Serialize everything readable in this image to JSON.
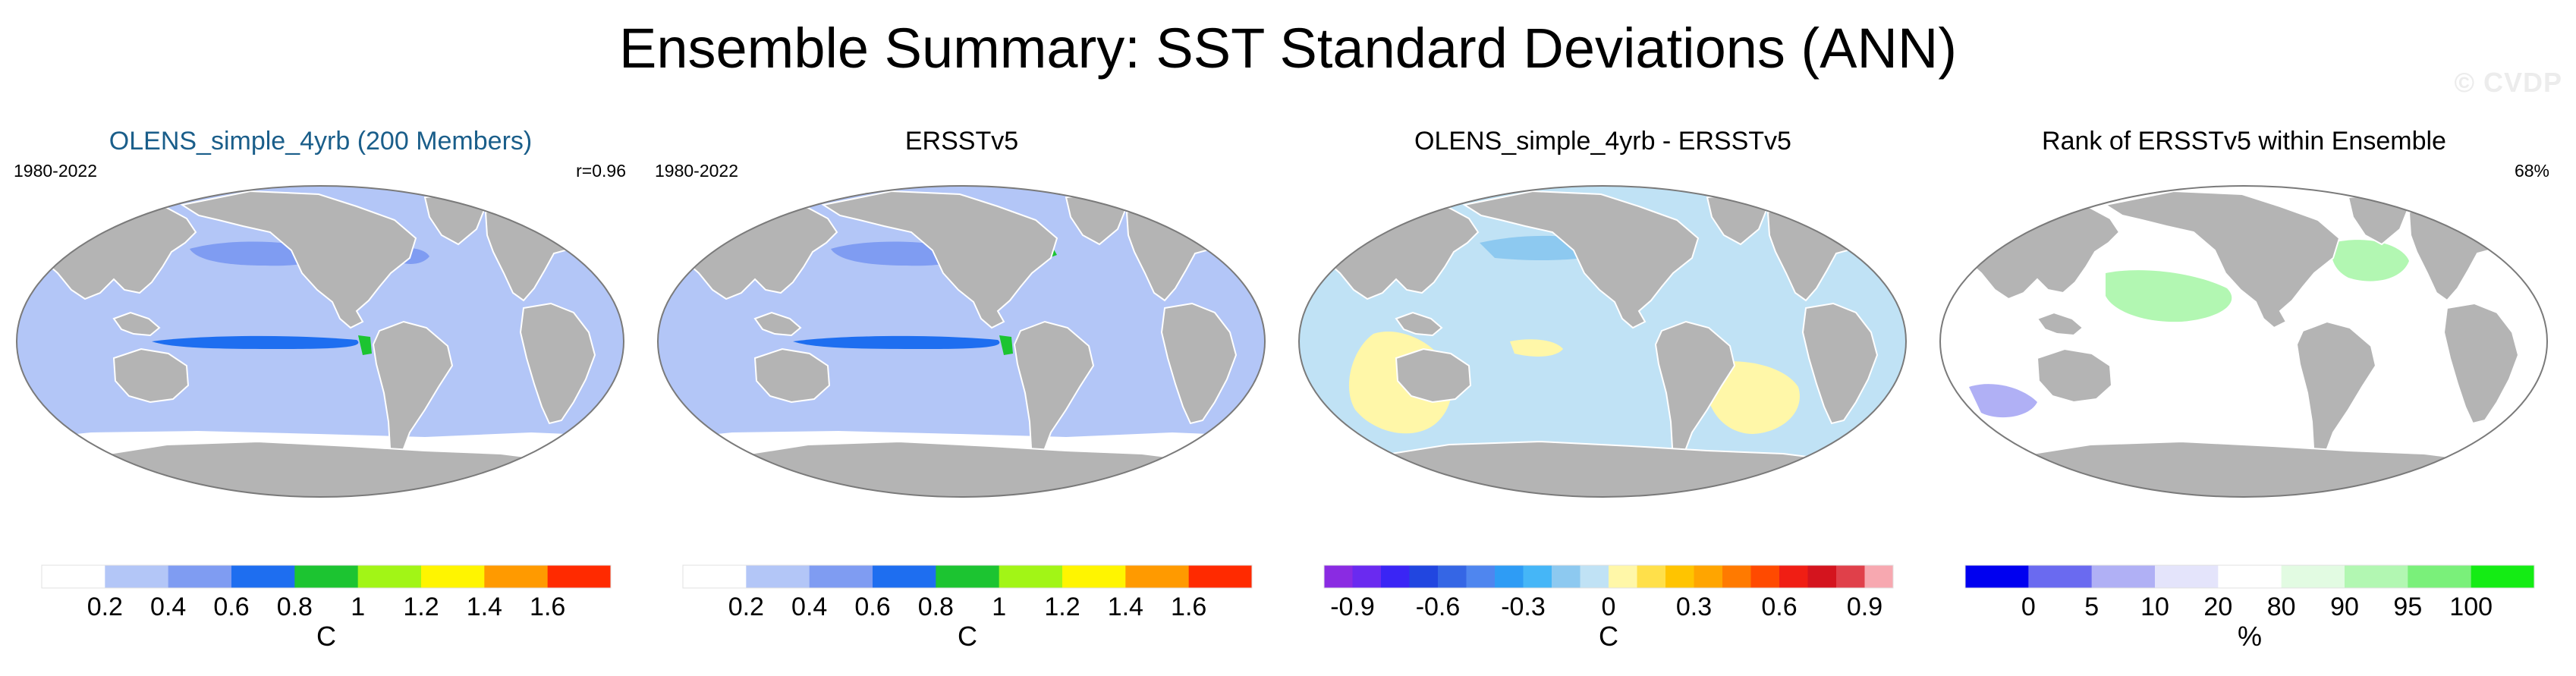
{
  "figure": {
    "title": "Ensemble Summary: SST Standard Deviations (ANN)",
    "watermark": "© CVDP"
  },
  "colors": {
    "land": "#b4b4b4",
    "coast": "#ffffff",
    "outline": "#7a7a7a"
  },
  "chart_data": [
    {
      "type": "heatmap",
      "title": "OLENS_simple_4yrb (200 Members)",
      "title_color": "#1a5e8a",
      "period": "1980-2022",
      "stat": "r=0.96",
      "projection": "global map",
      "colorbar": {
        "unit": "C",
        "ticks": [
          "0.2",
          "0.4",
          "0.6",
          "0.8",
          "1",
          "1.2",
          "1.4",
          "1.6"
        ],
        "colors": [
          "#ffffff",
          "#b3c6f7",
          "#7f9cf2",
          "#1e6ef0",
          "#1cc431",
          "#a2f516",
          "#fff500",
          "#ff9a00",
          "#ff2a00"
        ]
      },
      "regions": [
        {
          "name": "background",
          "value": "0.2-0.4",
          "color": "#b3c6f7"
        },
        {
          "name": "southern-ocean",
          "value": "0-0.2",
          "color": "#ffffff"
        },
        {
          "name": "north-pacific",
          "value": "0.4-0.6",
          "color": "#7f9cf2"
        },
        {
          "name": "cold-tongue",
          "value": "0.6-0.8",
          "color": "#1e6ef0"
        },
        {
          "name": "peru-coast",
          "value": "0.8-1",
          "color": "#1cc431"
        },
        {
          "name": "gulf-stream",
          "value": "0.4-0.6",
          "color": "#7f9cf2"
        }
      ]
    },
    {
      "type": "heatmap",
      "title": "ERSSTv5",
      "title_color": "#000000",
      "period": "1980-2022",
      "stat": "",
      "projection": "global map",
      "colorbar": {
        "unit": "C",
        "ticks": [
          "0.2",
          "0.4",
          "0.6",
          "0.8",
          "1",
          "1.2",
          "1.4",
          "1.6"
        ],
        "colors": [
          "#ffffff",
          "#b3c6f7",
          "#7f9cf2",
          "#1e6ef0",
          "#1cc431",
          "#a2f516",
          "#fff500",
          "#ff9a00",
          "#ff2a00"
        ]
      },
      "regions": [
        {
          "name": "background",
          "value": "0.2-0.4",
          "color": "#b3c6f7"
        },
        {
          "name": "southern-ocean",
          "value": "0-0.2",
          "color": "#ffffff"
        },
        {
          "name": "north-pacific",
          "value": "0.4-0.6",
          "color": "#7f9cf2"
        },
        {
          "name": "cold-tongue",
          "value": "0.6-0.8",
          "color": "#1e6ef0"
        },
        {
          "name": "peru-coast",
          "value": "0.8-1",
          "color": "#1cc431"
        },
        {
          "name": "kuroshio",
          "value": "0.8-1",
          "color": "#1cc431"
        }
      ]
    },
    {
      "type": "heatmap",
      "title": "OLENS_simple_4yrb - ERSSTv5",
      "title_color": "#000000",
      "period": "",
      "stat": "",
      "projection": "global map",
      "colorbar": {
        "unit": "C",
        "ticks": [
          "-0.9",
          "",
          "",
          "-0.6",
          "",
          "",
          "-0.3",
          "",
          "",
          "0",
          "",
          "",
          "0.3",
          "",
          "",
          "0.6",
          "",
          "",
          "0.9"
        ],
        "tick_spacing": "every 0.1, labels every 0.3",
        "colors": [
          "#8a2be2",
          "#6a2af0",
          "#3a25f5",
          "#2146e0",
          "#3566e5",
          "#4f86ef",
          "#2e9cf5",
          "#45b6f7",
          "#8dc9f0",
          "#c0e2f5",
          "#fff7a8",
          "#ffe04a",
          "#ffc400",
          "#ffa500",
          "#ff7a00",
          "#ff4a00",
          "#f01e14",
          "#d4141e",
          "#e0404a",
          "#f7a8b0"
        ]
      },
      "regions": [
        {
          "name": "background",
          "value": "-0.1-0",
          "color": "#c0e2f5"
        },
        {
          "name": "indian-ocean",
          "value": "0-0.1",
          "color": "#fff7a8"
        },
        {
          "name": "south-atlantic",
          "value": "0-0.1",
          "color": "#fff7a8"
        },
        {
          "name": "north-pacific",
          "value": "-0.2--0.1",
          "color": "#8dc9f0"
        }
      ]
    },
    {
      "type": "heatmap",
      "title": "Rank of ERSSTv5 within Ensemble",
      "title_color": "#000000",
      "period": "",
      "stat": "68%",
      "projection": "global map",
      "colorbar": {
        "unit": "%",
        "ticks": [
          "0",
          "5",
          "10",
          "20",
          "80",
          "90",
          "95",
          "100"
        ],
        "colors": [
          "#0000f0",
          "#6a6af0",
          "#b0b0f5",
          "#e4e4fb",
          "#ffffff",
          "#e2fbe2",
          "#b2f7b2",
          "#7af07a",
          "#14ec14"
        ]
      },
      "regions": [
        {
          "name": "background",
          "value": "20-80",
          "color": "#ffffff"
        },
        {
          "name": "central-pacific",
          "value": "90-95",
          "color": "#b2f7b2"
        },
        {
          "name": "north-atlantic",
          "value": "90-95",
          "color": "#b2f7b2"
        },
        {
          "name": "southern-ocean",
          "value": "5-10",
          "color": "#b0b0f5"
        }
      ]
    }
  ]
}
